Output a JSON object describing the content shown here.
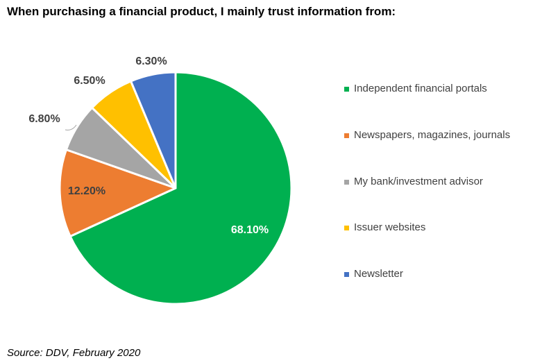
{
  "chart_data": {
    "type": "pie",
    "title": "When purchasing a financial product, I mainly trust information from:",
    "categories": [
      "Independent financial portals",
      "Newspapers, magazines, journals",
      "My bank/investment advisor",
      "Issuer websites",
      "Newsletter"
    ],
    "values": [
      68.1,
      12.2,
      6.8,
      6.5,
      6.3
    ],
    "data_labels": [
      "68.10%",
      "12.20%",
      "6.80%",
      "6.50%",
      "6.30%"
    ],
    "colors": [
      "#00B050",
      "#ED7D31",
      "#A5A5A5",
      "#FFC000",
      "#4472C4"
    ],
    "legend_position": "right",
    "source": "Source: DDV, February 2020"
  }
}
